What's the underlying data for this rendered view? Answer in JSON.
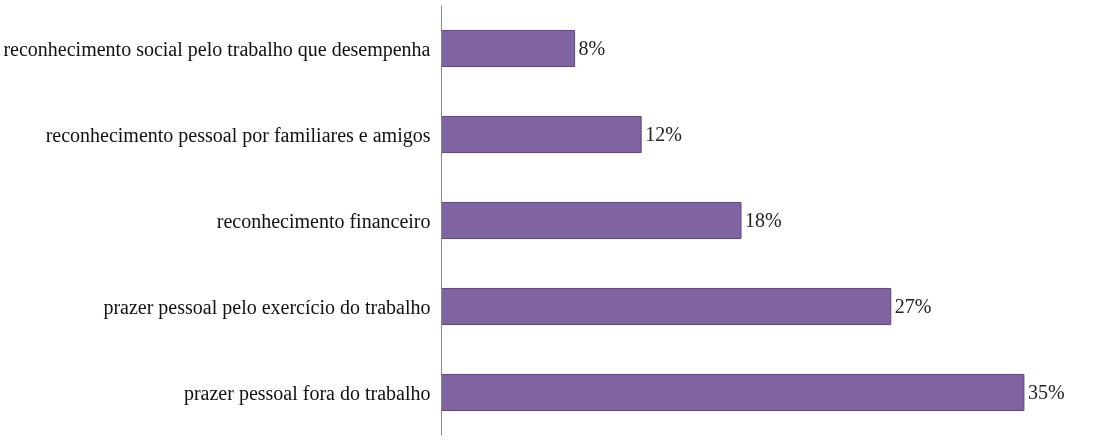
{
  "chart_data": {
    "type": "bar",
    "orientation": "horizontal",
    "categories": [
      "reconhecimento social pelo trabalho que desempenha",
      "reconhecimento pessoal por familiares e amigos",
      "reconhecimento financeiro",
      "prazer pessoal pelo exercício do trabalho",
      "prazer pessoal fora do trabalho"
    ],
    "values": [
      8,
      12,
      18,
      27,
      35
    ],
    "color": "#8064a2",
    "data_labels": true,
    "value_labels": [
      "8%",
      "12%",
      "18%",
      "27%",
      "35%"
    ],
    "grid": false
  }
}
